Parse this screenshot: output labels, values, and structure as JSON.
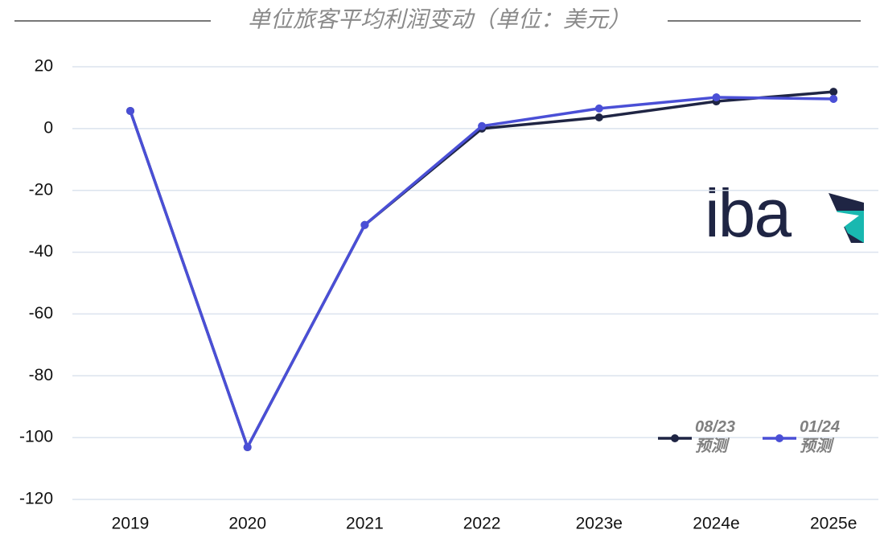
{
  "chart_data": {
    "type": "line",
    "title": "单位旅客平均利润变动（单位：美元）",
    "categories": [
      "2019",
      "2020",
      "2021",
      "2022",
      "2023e",
      "2024e",
      "2025e"
    ],
    "series": [
      {
        "name": "08/23\n预测",
        "color": "#1f2544",
        "values": [
          5.7,
          -103.1,
          -31.2,
          0,
          3.6,
          8.8,
          11.9
        ]
      },
      {
        "name": "01/24\n预测",
        "color": "#4a4fd6",
        "values": [
          5.7,
          -103.1,
          -31.2,
          0.8,
          6.5,
          10.1,
          9.6
        ]
      }
    ],
    "ylim": [
      -120,
      20
    ],
    "yticks": [
      -120,
      -100,
      -80,
      -60,
      -40,
      -20,
      0,
      20
    ],
    "grid": true,
    "legend": "lower right",
    "logo": "iba"
  }
}
